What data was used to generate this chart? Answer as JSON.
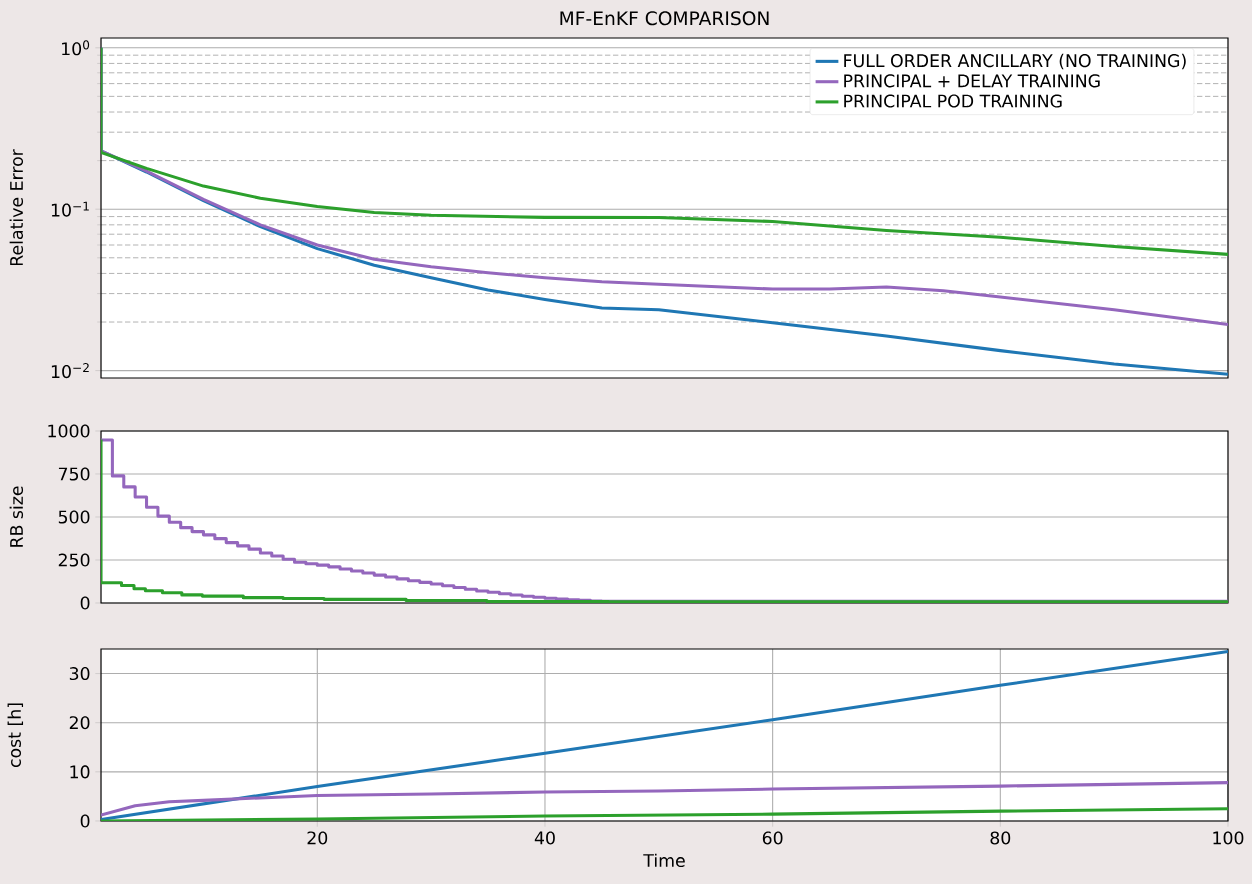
{
  "chart_data": [
    {
      "type": "line",
      "title": "MF-EnKF COMPARISON",
      "ylabel": "Relative Error",
      "log": true,
      "grid": "y",
      "legend": "top right",
      "tick_labels": "y",
      "xlim": [
        1,
        100
      ],
      "ylim": [
        0.009,
        1.15
      ],
      "yticks": [
        {
          "value": 0.01,
          "label": "10$^{−2}$"
        },
        {
          "value": 0.1,
          "label": "10$^{−1}$"
        },
        {
          "value": 1,
          "label": "10$^{0}$"
        },
        {
          "value": 0.02,
          "label": null
        },
        {
          "value": 0.03,
          "label": null
        },
        {
          "value": 0.04,
          "label": null
        },
        {
          "value": 0.05,
          "label": null
        },
        {
          "value": 0.06,
          "label": null
        },
        {
          "value": 0.07,
          "label": null
        },
        {
          "value": 0.08,
          "label": null
        },
        {
          "value": 0.09,
          "label": null
        },
        {
          "value": 0.2,
          "label": null
        },
        {
          "value": 0.3,
          "label": null
        },
        {
          "value": 0.4,
          "label": null
        },
        {
          "value": 0.5,
          "label": null
        },
        {
          "value": 0.6,
          "label": null
        },
        {
          "value": 0.7,
          "label": null
        },
        {
          "value": 0.8,
          "label": null
        },
        {
          "value": 0.9,
          "label": null
        }
      ],
      "series": [
        {
          "name": "FULL ORDER ANCILLARY (NO TRAINING)",
          "color": "#1f77b4",
          "x": [
            1,
            1,
            5,
            10,
            15,
            20,
            25,
            30,
            35,
            40,
            45,
            50,
            60,
            70,
            80,
            90,
            100
          ],
          "values": [
            1.0,
            0.23,
            0.17,
            0.113,
            0.078,
            0.057,
            0.045,
            0.0376,
            0.0316,
            0.0276,
            0.0244,
            0.0238,
            0.0198,
            0.0164,
            0.0133,
            0.011,
            0.0095
          ]
        },
        {
          "name": "PRINCIPAL + DELAY TRAINING",
          "color": "#9467bd",
          "x": [
            1,
            1,
            5,
            10,
            15,
            20,
            25,
            30,
            35,
            40,
            45,
            50,
            60,
            65,
            70,
            75,
            80,
            90,
            100
          ],
          "values": [
            1.0,
            0.23,
            0.172,
            0.115,
            0.08,
            0.06,
            0.049,
            0.044,
            0.0404,
            0.0376,
            0.0355,
            0.0343,
            0.032,
            0.032,
            0.033,
            0.0312,
            0.0286,
            0.0238,
            0.0193
          ]
        },
        {
          "name": "PRINCIPAL POD TRAINING",
          "color": "#2ca02c",
          "x": [
            1,
            1,
            5,
            10,
            15,
            20,
            25,
            30,
            40,
            50,
            60,
            70,
            80,
            90,
            100
          ],
          "values": [
            1.0,
            0.225,
            0.179,
            0.139,
            0.117,
            0.104,
            0.0955,
            0.0918,
            0.089,
            0.0888,
            0.0839,
            0.0737,
            0.067,
            0.0588,
            0.0525
          ]
        }
      ]
    },
    {
      "type": "step",
      "ylabel": "RB size",
      "grid": "y",
      "tick_labels": "y",
      "xlim": [
        1,
        100
      ],
      "ylim": [
        0,
        1000
      ],
      "yticks": [
        0,
        250,
        500,
        750,
        1000
      ],
      "series": [
        {
          "color": "#9467bd",
          "x": [
            1,
            2,
            3,
            4,
            5,
            6,
            7,
            8,
            9,
            10,
            11,
            12,
            13,
            14,
            15,
            16,
            17,
            18,
            19,
            20,
            21,
            22,
            23,
            24,
            25,
            26,
            27,
            28,
            29,
            30,
            31,
            32,
            33,
            34,
            35,
            36,
            37,
            38,
            39,
            40,
            41,
            42,
            43,
            44,
            45,
            46,
            100
          ],
          "values": [
            948,
            739,
            675,
            616,
            557,
            505,
            469,
            438,
            415,
            396,
            374,
            351,
            332,
            313,
            291,
            273,
            254,
            237,
            228,
            220,
            210,
            198,
            186,
            174,
            162,
            151,
            140,
            129,
            120,
            110,
            100,
            90,
            80,
            70,
            62,
            54,
            46,
            39,
            33,
            28,
            23,
            19,
            15,
            12,
            10,
            null,
            9
          ]
        },
        {
          "color": "#2ca02c",
          "x": [
            1,
            1,
            2.8,
            3.9,
            4.9,
            6.4,
            8.1,
            9.9,
            13.5,
            17,
            20.6,
            27.8,
            34.9,
            45.6,
            100
          ],
          "values": [
            950,
            118,
            102,
            83,
            71,
            59,
            47,
            40,
            31,
            26,
            21,
            14,
            9,
            7,
            7
          ]
        }
      ]
    },
    {
      "type": "line",
      "xlabel": "Time",
      "ylabel": "cost [h]",
      "grid": true,
      "xlim": [
        1,
        100
      ],
      "ylim": [
        0,
        35
      ],
      "xticks": [
        20,
        40,
        60,
        80,
        100
      ],
      "yticks": [
        0,
        10,
        20,
        30
      ],
      "series": [
        {
          "color": "#1f77b4",
          "x": [
            1,
            20,
            40,
            60,
            80,
            100
          ],
          "values": [
            0.3,
            7.0,
            13.8,
            20.6,
            27.6,
            34.5
          ]
        },
        {
          "color": "#9467bd",
          "x": [
            1,
            4,
            7,
            10,
            15,
            20,
            30,
            40,
            50,
            60,
            80,
            100
          ],
          "values": [
            1.2,
            3.1,
            3.9,
            4.2,
            4.7,
            5.2,
            5.5,
            5.9,
            6.1,
            6.5,
            7.1,
            7.8
          ]
        },
        {
          "color": "#2ca02c",
          "x": [
            1,
            20,
            40,
            60,
            80,
            100
          ],
          "values": [
            0.0,
            0.4,
            1.0,
            1.4,
            2.0,
            2.5
          ]
        }
      ]
    }
  ]
}
